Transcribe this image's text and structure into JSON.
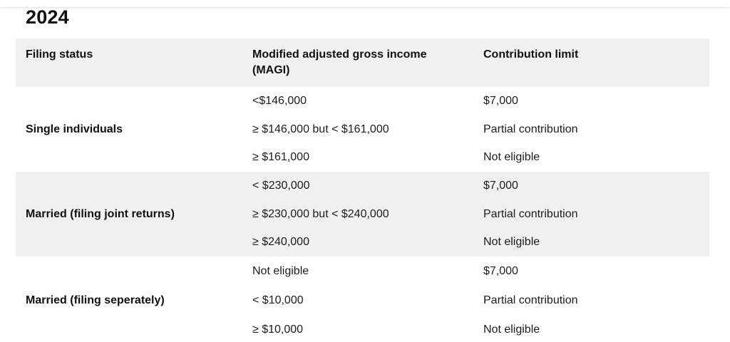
{
  "page": {
    "title": "2024"
  },
  "colors": {
    "stripe_gray": "#f0f0f0",
    "text": "#1a1a1a",
    "background": "#ffffff"
  },
  "table": {
    "columns": [
      "Filing status",
      "Modified adjusted gross income (MAGI)",
      "Contribution limit"
    ],
    "groups": [
      {
        "filing_status": "Single individuals",
        "rows": [
          {
            "magi": "<$146,000",
            "limit": "$7,000"
          },
          {
            "magi": "≥ $146,000 but < $161,000",
            "limit": "Partial contribution"
          },
          {
            "magi": "≥ $161,000",
            "limit": "Not eligible"
          }
        ]
      },
      {
        "filing_status": "Married (filing joint returns)",
        "rows": [
          {
            "magi": "< $230,000",
            "limit": "$7,000"
          },
          {
            "magi": "≥ $230,000 but < $240,000",
            "limit": "Partial contribution"
          },
          {
            "magi": "≥ $240,000",
            "limit": "Not eligible"
          }
        ]
      },
      {
        "filing_status": "Married (filing seperately)",
        "rows": [
          {
            "magi": "Not eligible",
            "limit": "$7,000"
          },
          {
            "magi": "< $10,000",
            "limit": "Partial contribution"
          },
          {
            "magi": "≥ $10,000",
            "limit": "Not eligible"
          }
        ]
      }
    ]
  }
}
